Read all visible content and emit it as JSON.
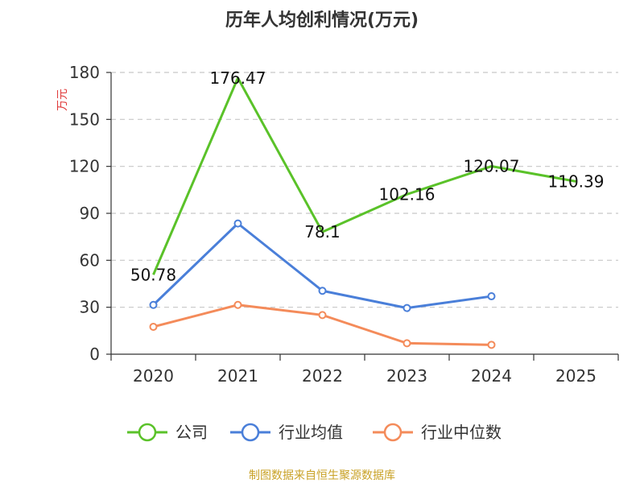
{
  "chart_data": {
    "type": "line",
    "title": "历年人均创利情况(万元)",
    "ylabel": "万元",
    "xlabel": "",
    "categories": [
      "2020",
      "2021",
      "2022",
      "2023",
      "2024",
      "2025"
    ],
    "ylim": [
      0,
      180
    ],
    "yticks": [
      0,
      30,
      60,
      90,
      120,
      150,
      180
    ],
    "grid": true,
    "legend_position": "bottom",
    "series": [
      {
        "name": "公司",
        "color": "#5ac229",
        "values": [
          50.78,
          176.47,
          78.1,
          102.16,
          120.07,
          110.39
        ],
        "labels": [
          "50.78",
          "176.47",
          "78.1",
          "102.16",
          "120.07",
          "110.39"
        ],
        "markers": false
      },
      {
        "name": "行业均值",
        "color": "#4a7fd9",
        "values": [
          31.5,
          83.5,
          40.5,
          29.5,
          37.0,
          null
        ],
        "markers": true
      },
      {
        "name": "行业中位数",
        "color": "#f48b5a",
        "values": [
          17.5,
          31.5,
          25.0,
          7.0,
          6.0,
          null
        ],
        "markers": true
      }
    ],
    "source": "制图数据来自恒生聚源数据库"
  }
}
